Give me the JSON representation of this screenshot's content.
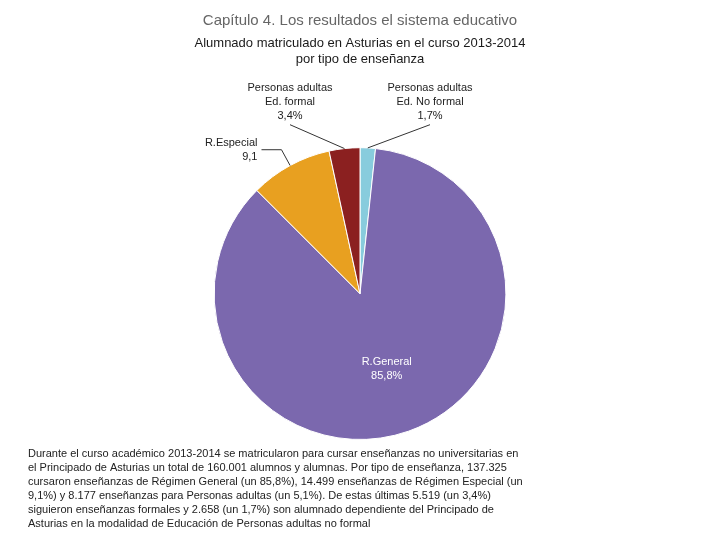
{
  "chart_data": {
    "type": "pie",
    "title": "Capítulo 4. Los resultados el sistema educativo",
    "subtitle": "Alumnado matriculado en Asturias en el curso 2013-2014\npor tipo de enseñanza",
    "categories": [
      "Personas adultas\nEd. No formal",
      "R.General",
      "R.Especial",
      "Personas adultas\nEd. formal"
    ],
    "values": [
      1.7,
      85.8,
      9.1,
      3.4
    ],
    "value_labels": [
      "1,7%",
      "85,8%",
      "9,1",
      "3,4%"
    ],
    "colors": [
      "#88CCDD",
      "#7B68AE",
      "#E8A020",
      "#8B2020"
    ],
    "data_labels": true,
    "annotations": [
      "Durante el curso académico 2013-2014 se matricularon para cursar enseñanzas no universitarias en\nel Principado de Asturias un total de 160.001 alumnos y alumnas. Por tipo de enseñanza, 137.325\ncursaron enseñanzas de Régimen General (un 85,8%), 14.499 enseñanzas de Régimen Especial (un\n9,1%) y 8.177 enseñanzas para Personas adultas (un 5,1%). De estas últimas 5.519 (un 3,4%)\nsiguieron enseñanzas formales y 2.658 (un 1,7%) son alumnado dependiente del Principado de\nAsturias en la modalidad de Educación de Personas adultas no formal"
    ]
  }
}
